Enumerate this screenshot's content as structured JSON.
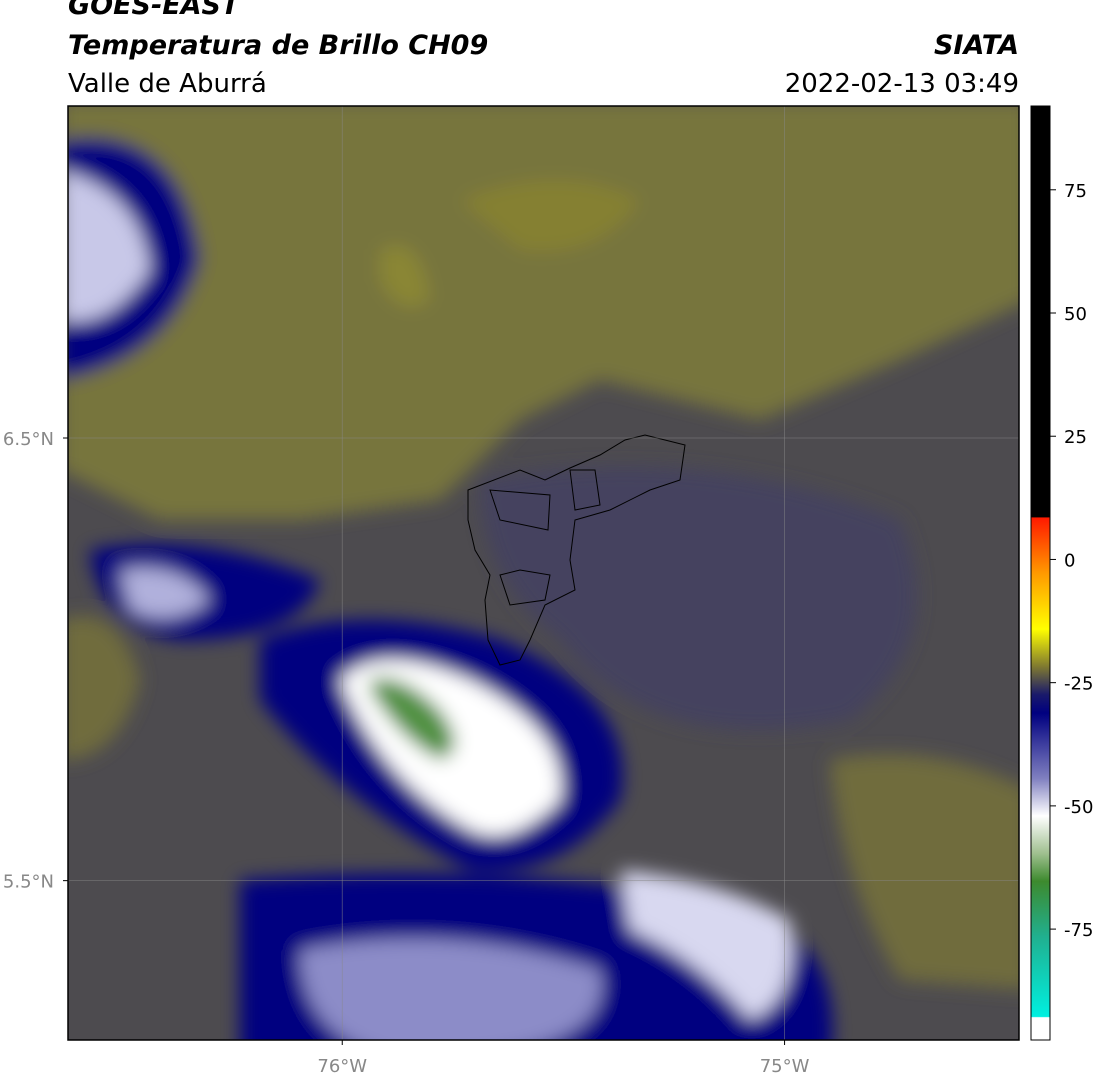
{
  "header": {
    "title": "GOES-EAST",
    "subtitle": "Temperatura de Brillo CH09",
    "region": "Valle de Aburrá",
    "source": "SIATA",
    "datetime": "2022-02-13 03:49"
  },
  "map": {
    "xlim": [
      -76.62,
      -74.47
    ],
    "ylim": [
      5.14,
      7.25
    ],
    "xticks": [
      {
        "value": -76,
        "label": "76°W"
      },
      {
        "value": -75,
        "label": "75°W"
      }
    ],
    "yticks": [
      {
        "value": 6.5,
        "label": "6.5°N"
      },
      {
        "value": 5.5,
        "label": "5.5°N"
      }
    ],
    "grid": true
  },
  "colorbar": {
    "lim": [
      -97.5,
      92
    ],
    "ticks": [
      75,
      50,
      25,
      0,
      -25,
      -50,
      -75
    ]
  }
}
